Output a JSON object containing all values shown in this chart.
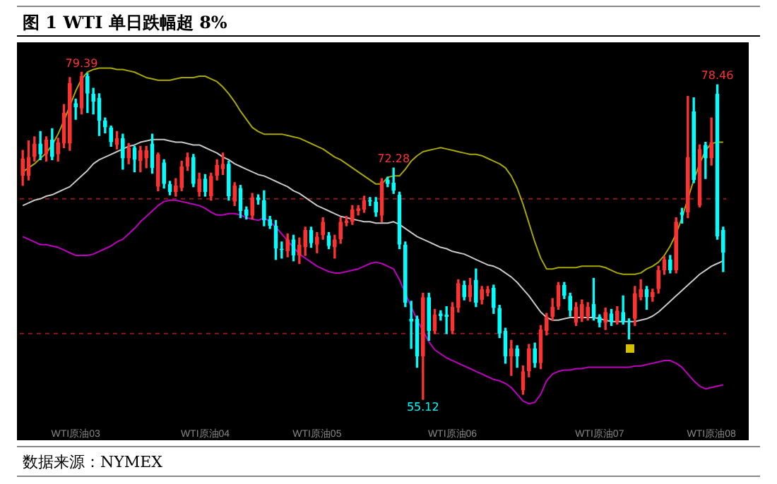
{
  "chart_data": {
    "type": "candlestick",
    "title": "图 1 WTI 单日跌幅超 8%",
    "annotations": [
      "数据来源：NYMEX",
      {
        "text": "79.39",
        "y": 79.39
      },
      {
        "text": "72.28",
        "y": 72.28
      },
      {
        "text": "55.12",
        "y": 55.12
      },
      {
        "text": "78.46",
        "y": 78.46
      }
    ],
    "tick_labels": "x",
    "legend": false,
    "categories": [
      null,
      null,
      null,
      null,
      null,
      null,
      null,
      null,
      null,
      "WTI原油03",
      null,
      null,
      null,
      null,
      null,
      null,
      null,
      null,
      null,
      null,
      null,
      null,
      null,
      null,
      null,
      null,
      null,
      null,
      null,
      null,
      null,
      "WTI原油04",
      null,
      null,
      null,
      null,
      null,
      null,
      null,
      null,
      null,
      null,
      null,
      null,
      null,
      null,
      null,
      null,
      null,
      null,
      "WTI原油05",
      null,
      null,
      null,
      null,
      null,
      null,
      null,
      null,
      null,
      null,
      null,
      null,
      null,
      null,
      null,
      null,
      null,
      null,
      null,
      null,
      null,
      null,
      "WTI原油06",
      null,
      null,
      null,
      null,
      null,
      null,
      null,
      null,
      null,
      null,
      null,
      null,
      null,
      null,
      null,
      null,
      null,
      null,
      null,
      null,
      null,
      null,
      null,
      null,
      "WTI原油07",
      null,
      null,
      null,
      null,
      null,
      null,
      null,
      null,
      null,
      null,
      null,
      null,
      null,
      null,
      null,
      null,
      null,
      null,
      "WTI原油08",
      null,
      null
    ],
    "ohlc": [
      [
        71.7,
        73.6,
        71.0,
        73.0
      ],
      [
        71.7,
        74.3,
        71.4,
        73.1
      ],
      [
        73.1,
        74.6,
        72.8,
        74.1
      ],
      [
        74.1,
        75.0,
        72.9,
        73.3
      ],
      [
        73.3,
        74.6,
        72.8,
        74.4
      ],
      [
        74.4,
        75.2,
        72.9,
        73.1
      ],
      [
        73.3,
        74.5,
        72.8,
        74.2
      ],
      [
        74.1,
        77.0,
        73.8,
        76.4
      ],
      [
        74.1,
        79.0,
        73.6,
        78.6
      ],
      [
        77.1,
        77.4,
        75.9,
        76.8
      ],
      [
        76.7,
        79.39,
        76.3,
        79.1
      ],
      [
        79.1,
        79.3,
        76.4,
        77.8
      ],
      [
        77.8,
        78.2,
        76.3,
        77.2
      ],
      [
        77.5,
        77.8,
        74.7,
        75.8
      ],
      [
        75.8,
        76.0,
        74.9,
        75.3
      ],
      [
        75.3,
        75.4,
        73.9,
        74.2
      ],
      [
        74.0,
        75.0,
        73.7,
        74.5
      ],
      [
        74.5,
        74.8,
        72.2,
        73.0
      ],
      [
        73.0,
        74.1,
        72.6,
        73.8
      ],
      [
        73.8,
        73.9,
        72.0,
        72.9
      ],
      [
        72.8,
        73.9,
        72.0,
        73.6
      ],
      [
        73.0,
        73.9,
        72.3,
        73.6
      ],
      [
        74.1,
        74.8,
        71.9,
        72.3
      ],
      [
        70.9,
        73.4,
        70.6,
        73.3
      ],
      [
        72.7,
        72.9,
        70.8,
        71.1
      ],
      [
        71.1,
        71.3,
        70.3,
        70.5
      ],
      [
        70.5,
        71.5,
        70.2,
        71.0
      ],
      [
        70.8,
        72.8,
        70.6,
        72.4
      ],
      [
        72.4,
        73.4,
        72.1,
        73.1
      ],
      [
        73.1,
        73.3,
        70.9,
        71.1
      ],
      [
        70.5,
        71.9,
        70.2,
        71.5
      ],
      [
        71.5,
        71.8,
        70.2,
        70.5
      ],
      [
        70.2,
        71.9,
        69.9,
        71.7
      ],
      [
        71.7,
        72.9,
        71.4,
        72.5
      ],
      [
        72.2,
        73.4,
        71.8,
        72.6
      ],
      [
        72.6,
        72.8,
        69.9,
        70.2
      ],
      [
        69.8,
        71.2,
        69.5,
        71.0
      ],
      [
        70.8,
        71.0,
        68.6,
        69.1
      ],
      [
        69.2,
        69.4,
        68.5,
        68.75
      ],
      [
        68.75,
        70.4,
        68.5,
        70.1
      ],
      [
        70.1,
        70.3,
        69.6,
        69.9
      ],
      [
        69.9,
        70.6,
        68.0,
        68.4
      ],
      [
        68.5,
        68.7,
        67.8,
        68.0
      ],
      [
        68.0,
        68.4,
        65.5,
        66.3
      ],
      [
        66.3,
        66.8,
        65.6,
        66.2
      ],
      [
        66.1,
        67.4,
        65.7,
        67.0
      ],
      [
        67.0,
        67.3,
        65.4,
        65.8
      ],
      [
        65.8,
        67.1,
        65.2,
        66.6
      ],
      [
        66.4,
        67.9,
        65.8,
        67.7
      ],
      [
        67.7,
        67.9,
        66.4,
        66.7
      ],
      [
        66.6,
        67.5,
        66.0,
        67.2
      ],
      [
        67.3,
        68.6,
        67.0,
        68.3
      ],
      [
        67.3,
        67.5,
        66.3,
        66.5
      ],
      [
        66.4,
        67.3,
        65.6,
        67.0
      ],
      [
        67.0,
        68.6,
        66.7,
        68.3
      ],
      [
        68.2,
        68.7,
        68.0,
        68.4
      ],
      [
        68.3,
        69.5,
        68.1,
        69.2
      ],
      [
        69.1,
        69.5,
        68.8,
        69.3
      ],
      [
        69.2,
        70.2,
        69.0,
        69.9
      ],
      [
        69.9,
        70.1,
        69.5,
        69.8
      ],
      [
        69.8,
        70.1,
        68.7,
        69.0
      ],
      [
        68.75,
        71.5,
        68.3,
        71.3
      ],
      [
        71.4,
        71.6,
        70.9,
        71.1
      ],
      [
        71.2,
        72.28,
        70.4,
        70.6
      ],
      [
        70.3,
        70.5,
        66.3,
        66.6
      ],
      [
        66.6,
        66.8,
        62.0,
        62.3
      ],
      [
        61.1,
        62.4,
        58.9,
        60.9
      ],
      [
        61.1,
        61.3,
        57.5,
        58.3
      ],
      [
        58.3,
        63.0,
        55.12,
        62.7
      ],
      [
        62.7,
        63.0,
        59.5,
        60.2
      ],
      [
        60.2,
        61.8,
        60.0,
        61.4
      ],
      [
        61.5,
        61.7,
        61.0,
        61.3
      ],
      [
        61.4,
        62.0,
        60.0,
        61.25
      ],
      [
        60.2,
        62.3,
        60.0,
        62.0
      ],
      [
        61.9,
        64.0,
        61.6,
        63.75
      ],
      [
        63.6,
        63.9,
        62.5,
        62.7
      ],
      [
        62.7,
        64.1,
        62.4,
        63.6
      ],
      [
        64.0,
        64.8,
        62.0,
        62.3
      ],
      [
        62.5,
        63.5,
        62.2,
        63.3
      ],
      [
        63.0,
        63.5,
        62.8,
        63.3
      ],
      [
        63.4,
        63.6,
        61.5,
        61.9
      ],
      [
        61.9,
        62.1,
        59.7,
        60.0
      ],
      [
        60.2,
        60.4,
        57.8,
        58.3
      ],
      [
        58.3,
        59.5,
        56.9,
        58.9
      ],
      [
        58.9,
        59.1,
        57.5,
        58.3
      ],
      [
        55.8,
        57.6,
        55.5,
        57.2
      ],
      [
        57.2,
        59.2,
        56.8,
        58.9
      ],
      [
        58.9,
        59.3,
        57.5,
        57.8
      ],
      [
        57.8,
        60.6,
        57.4,
        60.3
      ],
      [
        60.2,
        61.5,
        59.9,
        61.25
      ],
      [
        61.25,
        62.6,
        61.0,
        62.0
      ],
      [
        62.0,
        63.8,
        61.8,
        63.6
      ],
      [
        63.6,
        63.8,
        62.6,
        62.8
      ],
      [
        62.8,
        63.0,
        61.3,
        61.7
      ],
      [
        60.8,
        62.3,
        60.6,
        62.0
      ],
      [
        61.1,
        62.5,
        60.9,
        62.2
      ],
      [
        61.3,
        62.3,
        61.0,
        62.0
      ],
      [
        62.2,
        64.1,
        61.0,
        61.25
      ],
      [
        61.25,
        61.4,
        60.5,
        60.8
      ],
      [
        60.8,
        61.9,
        60.3,
        61.6
      ],
      [
        61.5,
        61.8,
        60.6,
        60.9
      ],
      [
        60.9,
        62.0,
        60.7,
        61.7
      ],
      [
        61.6,
        62.8,
        60.7,
        60.9
      ],
      [
        60.9,
        61.1,
        59.6,
        60.85
      ],
      [
        61.1,
        63.5,
        60.6,
        63.0
      ],
      [
        62.7,
        64.0,
        62.5,
        63.3
      ],
      [
        63.3,
        63.5,
        61.8,
        62.7
      ],
      [
        62.7,
        63.3,
        62.4,
        63.1
      ],
      [
        63.3,
        65.0,
        63.0,
        64.7
      ],
      [
        64.7,
        65.7,
        64.4,
        65.5
      ],
      [
        65.5,
        65.8,
        64.5,
        64.7
      ],
      [
        64.7,
        68.6,
        64.5,
        68.3
      ],
      [
        69.0,
        69.3,
        68.2,
        68.8
      ],
      [
        69.0,
        77.6,
        68.6,
        73.1
      ],
      [
        76.5,
        77.5,
        71.2,
        71.4
      ],
      [
        69.5,
        74.0,
        69.4,
        73.7
      ],
      [
        74.0,
        74.2,
        71.5,
        73.0
      ],
      [
        73.0,
        76.0,
        72.5,
        74.2
      ],
      [
        77.8,
        78.46,
        67.0,
        67.2
      ],
      [
        67.7,
        67.9,
        64.6,
        66.0
      ]
    ],
    "colors": [
      "#ff3232",
      "#ff3232",
      "#ff3232",
      "#00ffff",
      "#ff3232",
      "#00ffff",
      "#ff3232",
      "#ff3232",
      "#ff3232",
      "#00ffff",
      "#ff3232",
      "#00ffff",
      "#00ffff",
      "#00ffff",
      "#00ffff",
      "#00ffff",
      "#ff3232",
      "#00ffff",
      "#ff3232",
      "#00ffff",
      "#ff3232",
      "#ff3232",
      "#00ffff",
      "#ff3232",
      "#00ffff",
      "#00ffff",
      "#ff3232",
      "#ff3232",
      "#ff3232",
      "#00ffff",
      "#ff3232",
      "#00ffff",
      "#ff3232",
      "#ff3232",
      "#ff3232",
      "#00ffff",
      "#ff3232",
      "#00ffff",
      "#00ffff",
      "#ff3232",
      "#00ffff",
      "#00ffff",
      "#00ffff",
      "#00ffff",
      "#00ffff",
      "#ff3232",
      "#00ffff",
      "#ff3232",
      "#ff3232",
      "#00ffff",
      "#ff3232",
      "#ff3232",
      "#00ffff",
      "#ff3232",
      "#ff3232",
      "#ff3232",
      "#ff3232",
      "#ff3232",
      "#ff3232",
      "#00ffff",
      "#00ffff",
      "#ff3232",
      "#00ffff",
      "#00ffff",
      "#00ffff",
      "#00ffff",
      "#00ffff",
      "#00ffff",
      "#ff3232",
      "#00ffff",
      "#ff3232",
      "#00ffff",
      "#00ffff",
      "#ff3232",
      "#ff3232",
      "#00ffff",
      "#ff3232",
      "#00ffff",
      "#ff3232",
      "#ff3232",
      "#00ffff",
      "#00ffff",
      "#00ffff",
      "#ff3232",
      "#00ffff",
      "#ff3232",
      "#ff3232",
      "#00ffff",
      "#ff3232",
      "#ff3232",
      "#ff3232",
      "#ff3232",
      "#00ffff",
      "#00ffff",
      "#ff3232",
      "#ff3232",
      "#ff3232",
      "#00ffff",
      "#00ffff",
      "#ff3232",
      "#00ffff",
      "#ff3232",
      "#00ffff",
      "#00ffff",
      "#ff3232",
      "#ff3232",
      "#00ffff",
      "#ff3232",
      "#ff3232",
      "#ff3232",
      "#00ffff",
      "#ff3232",
      "#00ffff",
      "#ff3232",
      "#00ffff",
      "#ff3232",
      "#00ffff",
      "#ff3232",
      "#00ffff",
      "#00ffff"
    ],
    "ref_lines": [
      {
        "axis": "y",
        "value": 70,
        "color": "#8b1a1a",
        "line_style": "dashed"
      },
      {
        "axis": "y",
        "value": 60,
        "color": "#8b1a1a",
        "line_style": "dashed"
      }
    ],
    "series": [
      {
        "type": "line",
        "color": "#a8a800",
        "values": [
          72.0,
          72.3,
          72.6,
          73.0,
          73.4,
          74.0,
          74.8,
          75.8,
          76.9,
          78.0,
          78.9,
          79.4,
          79.6,
          79.7,
          79.7,
          79.7,
          79.6,
          79.6,
          79.5,
          79.4,
          79.2,
          79.0,
          78.9,
          78.8,
          78.8,
          78.8,
          78.9,
          79.0,
          79.0,
          79.0,
          79.1,
          79.1,
          78.9,
          78.7,
          78.3,
          77.8,
          77.2,
          76.5,
          75.9,
          75.3,
          75.0,
          74.8,
          74.8,
          74.8,
          74.8,
          74.7,
          74.6,
          74.5,
          74.3,
          74.1,
          73.9,
          73.7,
          73.4,
          73.1,
          72.9,
          72.6,
          72.3,
          72.0,
          71.7,
          71.4,
          71.1,
          71.1,
          71.6,
          71.7,
          71.7,
          72.2,
          72.8,
          73.2,
          73.5,
          73.6,
          73.7,
          73.8,
          73.7,
          73.6,
          73.5,
          73.4,
          73.3,
          73.3,
          73.2,
          73.0,
          72.8,
          72.6,
          72.3,
          71.7,
          70.8,
          69.6,
          68.2,
          66.8,
          65.6,
          64.8,
          64.8,
          64.9,
          64.9,
          64.9,
          64.9,
          65.0,
          65.0,
          65.0,
          65.0,
          64.9,
          64.7,
          64.5,
          64.4,
          64.4,
          64.4,
          64.5,
          64.8,
          65.0,
          65.3,
          65.8,
          66.5,
          67.4,
          68.6,
          70.0,
          71.4,
          72.6,
          73.6,
          74.1,
          74.2,
          74.2
        ]
      },
      {
        "type": "line",
        "color": "#c8c8c8",
        "values": [
          69.5,
          69.7,
          69.9,
          70.0,
          70.2,
          70.3,
          70.5,
          70.7,
          70.9,
          71.3,
          71.7,
          72.1,
          72.6,
          72.9,
          73.1,
          73.3,
          73.5,
          73.7,
          73.9,
          74.0,
          74.2,
          74.3,
          74.4,
          74.4,
          74.4,
          74.3,
          74.2,
          74.2,
          74.1,
          74.0,
          74.0,
          73.8,
          73.6,
          73.4,
          73.1,
          72.9,
          72.6,
          72.4,
          72.2,
          72.0,
          71.8,
          71.7,
          71.5,
          71.3,
          71.1,
          70.9,
          70.6,
          70.4,
          70.1,
          69.8,
          69.5,
          69.3,
          69.1,
          68.9,
          68.7,
          68.6,
          68.5,
          68.4,
          68.3,
          68.3,
          68.2,
          68.2,
          68.2,
          68.3,
          68.1,
          67.8,
          67.5,
          67.2,
          67.0,
          66.8,
          66.6,
          66.4,
          66.3,
          66.1,
          66.0,
          65.9,
          65.7,
          65.5,
          65.3,
          65.1,
          65.0,
          64.8,
          64.5,
          64.2,
          63.8,
          63.3,
          62.8,
          62.2,
          61.6,
          61.2,
          61.0,
          61.0,
          61.1,
          61.2,
          61.2,
          61.2,
          61.2,
          61.2,
          61.1,
          61.0,
          60.9,
          60.9,
          60.9,
          60.9,
          60.9,
          61.0,
          61.1,
          61.3,
          61.6,
          62.0,
          62.4,
          62.8,
          63.2,
          63.6,
          64.0,
          64.4,
          64.7,
          65.0,
          65.2,
          65.4
        ]
      },
      {
        "type": "line",
        "color": "#c000c0",
        "values": [
          67.2,
          67.0,
          66.8,
          66.6,
          66.6,
          66.5,
          66.4,
          66.2,
          66.0,
          65.8,
          65.8,
          65.8,
          65.9,
          66.1,
          66.3,
          66.5,
          66.8,
          67.0,
          67.4,
          67.8,
          68.3,
          68.7,
          69.1,
          69.5,
          69.8,
          69.9,
          69.9,
          69.8,
          69.7,
          69.6,
          69.5,
          69.3,
          69.0,
          68.8,
          68.8,
          68.9,
          68.9,
          68.8,
          68.6,
          68.5,
          68.4,
          68.6,
          68.3,
          67.9,
          67.4,
          66.9,
          66.4,
          65.9,
          65.6,
          65.3,
          65.0,
          64.8,
          64.6,
          64.5,
          64.5,
          64.6,
          64.7,
          64.8,
          65.0,
          65.2,
          65.3,
          65.2,
          65.0,
          64.8,
          64.0,
          63.0,
          62.0,
          61.0,
          60.2,
          59.4,
          58.8,
          58.5,
          58.2,
          58.0,
          57.8,
          57.6,
          57.4,
          57.2,
          57.0,
          56.8,
          56.6,
          56.5,
          56.3,
          56.0,
          55.5,
          55.0,
          54.8,
          54.9,
          55.5,
          56.5,
          57.0,
          57.2,
          57.3,
          57.3,
          57.4,
          57.4,
          57.5,
          57.5,
          57.5,
          57.5,
          57.5,
          57.5,
          57.5,
          57.5,
          57.6,
          57.6,
          57.7,
          57.8,
          57.9,
          58.0,
          58.0,
          57.8,
          57.5,
          57.0,
          56.5,
          56.1,
          55.9,
          56.0,
          56.1,
          56.2
        ]
      }
    ]
  }
}
